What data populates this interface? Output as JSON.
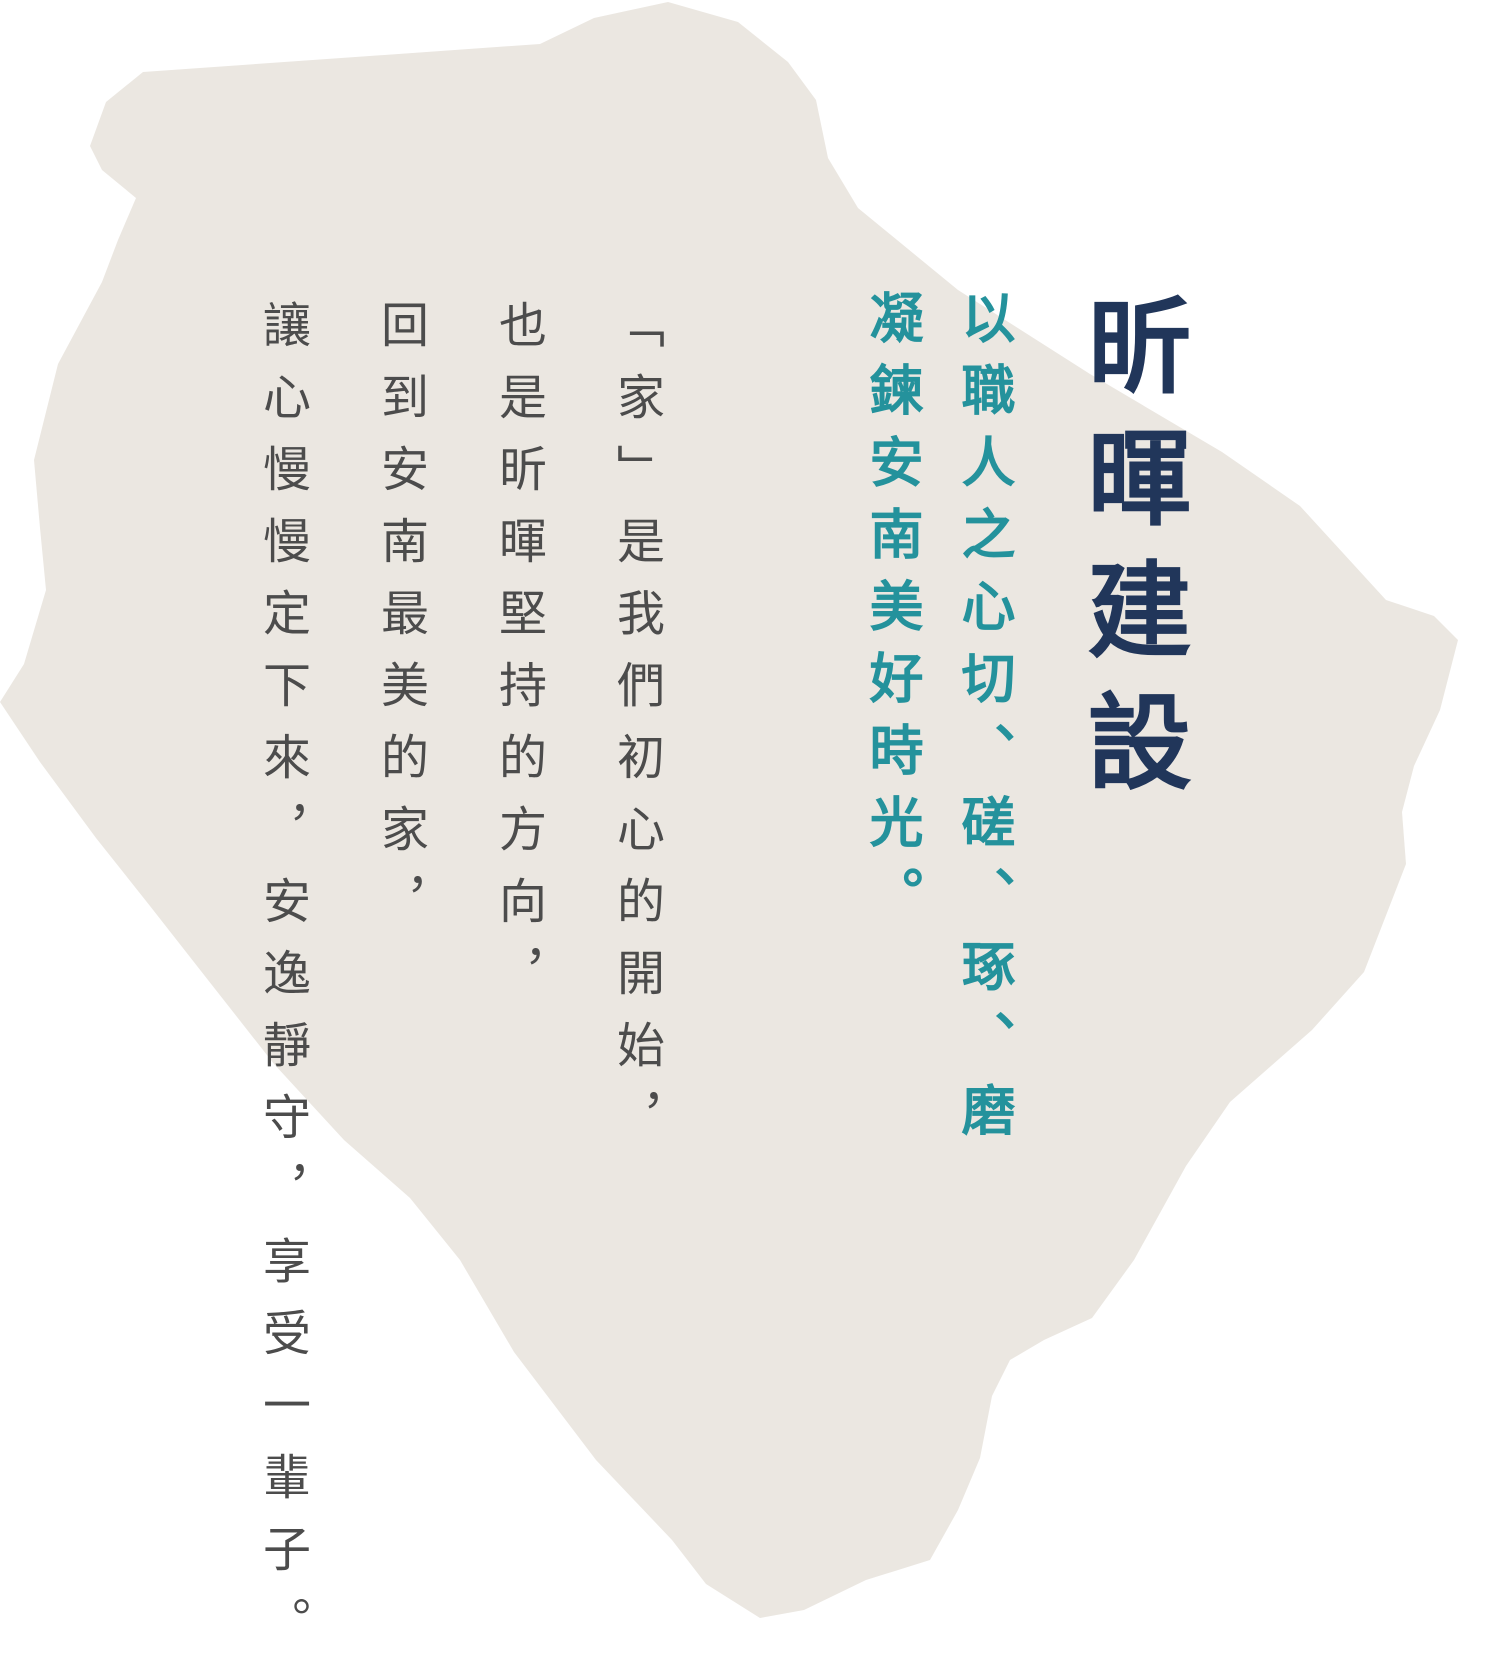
{
  "colors": {
    "background": "#ffffff",
    "map_fill": "#ebe7e1",
    "title": "#21365a",
    "tagline": "#24929c",
    "body_text": "#4c4c4c"
  },
  "brand": {
    "title": "昕暉建設"
  },
  "tagline": {
    "line1": "以職人之心切、磋、琢、磨",
    "line2": "凝鍊安南美好時光。"
  },
  "body": {
    "line1": "「家」是我們初心的開始，",
    "line2": "也是昕暉堅持的方向，",
    "line3": "回到安南最美的家，",
    "line4": "讓心慢慢定下來，安逸靜守，享受一輩子。"
  }
}
